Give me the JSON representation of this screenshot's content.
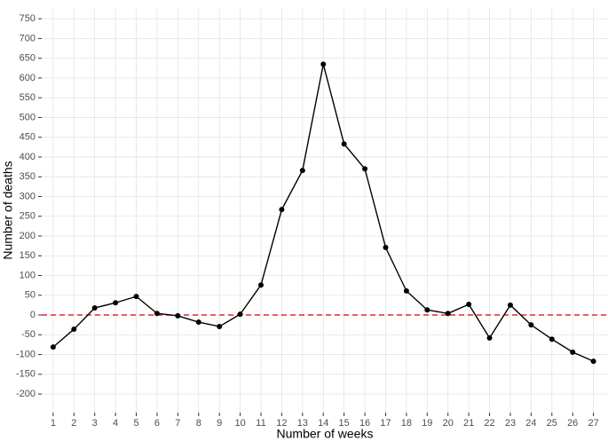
{
  "chart_data": {
    "type": "line",
    "x_label": "Number of weeks",
    "y_label": "Number of deaths",
    "x": [
      1,
      2,
      3,
      4,
      5,
      6,
      7,
      8,
      9,
      10,
      11,
      12,
      13,
      14,
      15,
      16,
      17,
      18,
      19,
      20,
      21,
      22,
      23,
      24,
      25,
      26,
      27
    ],
    "series": [
      {
        "color": "#000000",
        "values": [
          -81,
          -36,
          18,
          31,
          47,
          4,
          -2,
          -18,
          -29,
          2,
          76,
          267,
          366,
          635,
          433,
          370,
          171,
          61,
          13,
          4,
          27,
          -58,
          25,
          -25,
          -61,
          -94,
          -117
        ]
      }
    ],
    "xlim": [
      0.45,
      27.7
    ],
    "xticks": [
      1,
      2,
      3,
      4,
      5,
      6,
      7,
      8,
      9,
      10,
      11,
      12,
      13,
      14,
      15,
      16,
      17,
      18,
      19,
      20,
      21,
      22,
      23,
      24,
      25,
      26,
      27
    ],
    "ylim": [
      -247,
      775
    ],
    "yticks": [
      -200,
      -150,
      -100,
      -50,
      0,
      50,
      100,
      150,
      200,
      250,
      300,
      350,
      400,
      450,
      500,
      550,
      600,
      650,
      700,
      750
    ],
    "reference_line": {
      "value": 0,
      "color": "#e8262a"
    },
    "grid": true
  }
}
